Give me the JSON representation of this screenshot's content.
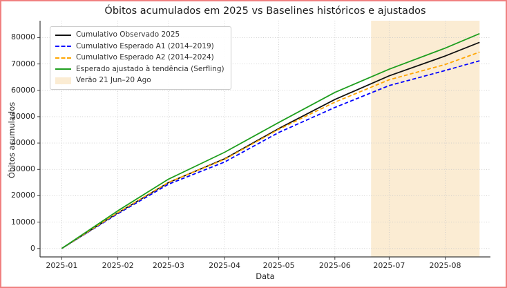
{
  "figure_border_color": "#f08080",
  "chart_data": {
    "type": "line",
    "title": "Óbitos acumulados em 2025 vs Baselines históricos e ajustados",
    "xlabel": "Data",
    "ylabel": "Óbitos acumulados",
    "grid": true,
    "grid_color": "#c9c9c9",
    "spine_color": "#3b3b3b",
    "legend_position": "upper left",
    "x_tick_labels": [
      "2025-01",
      "2025-02",
      "2025-03",
      "2025-04",
      "2025-05",
      "2025-06",
      "2025-07",
      "2025-08"
    ],
    "x_tick_days": [
      0,
      31,
      59,
      90,
      120,
      151,
      181,
      212
    ],
    "y_ticks": [
      0,
      10000,
      20000,
      30000,
      40000,
      50000,
      60000,
      70000,
      80000
    ],
    "xlim_days": [
      -12,
      237
    ],
    "ylim": [
      -3200,
      86400
    ],
    "anchor_dates": [
      "2025-01-01",
      "2025-02-01",
      "2025-03-01",
      "2025-04-01",
      "2025-05-01",
      "2025-06-01",
      "2025-07-01",
      "2025-08-01",
      "2025-08-20"
    ],
    "anchor_days": [
      0,
      31,
      59,
      90,
      120,
      151,
      181,
      212,
      231
    ],
    "series": [
      {
        "name": "Cumulativo Observado 2025",
        "color": "#111111",
        "style": "solid",
        "values": [
          0,
          13500,
          25000,
          34000,
          45500,
          56500,
          65500,
          73000,
          78200
        ]
      },
      {
        "name": "Cumulativo Esperado A1 (2014–2019)",
        "color": "#0000ff",
        "style": "dashed",
        "values": [
          0,
          13200,
          24400,
          32800,
          44000,
          53500,
          61800,
          67500,
          71200
        ]
      },
      {
        "name": "Cumulativo Esperado A2 (2014–2024)",
        "color": "#ffa500",
        "style": "dashed",
        "values": [
          0,
          13600,
          25100,
          33800,
          45200,
          55500,
          64000,
          69800,
          74500
        ]
      },
      {
        "name": "Esperado ajustado à tendência (Serfling)",
        "color": "#1e9e1e",
        "style": "solid",
        "values": [
          0,
          14300,
          26300,
          36500,
          47800,
          59200,
          68000,
          76000,
          81500
        ]
      }
    ],
    "band": {
      "label": "Verão 21 Jun–20 Ago",
      "start_date": "2025-06-21",
      "end_date": "2025-08-20",
      "start_day": 171,
      "end_day": 231,
      "color": "#fbecd3"
    }
  }
}
